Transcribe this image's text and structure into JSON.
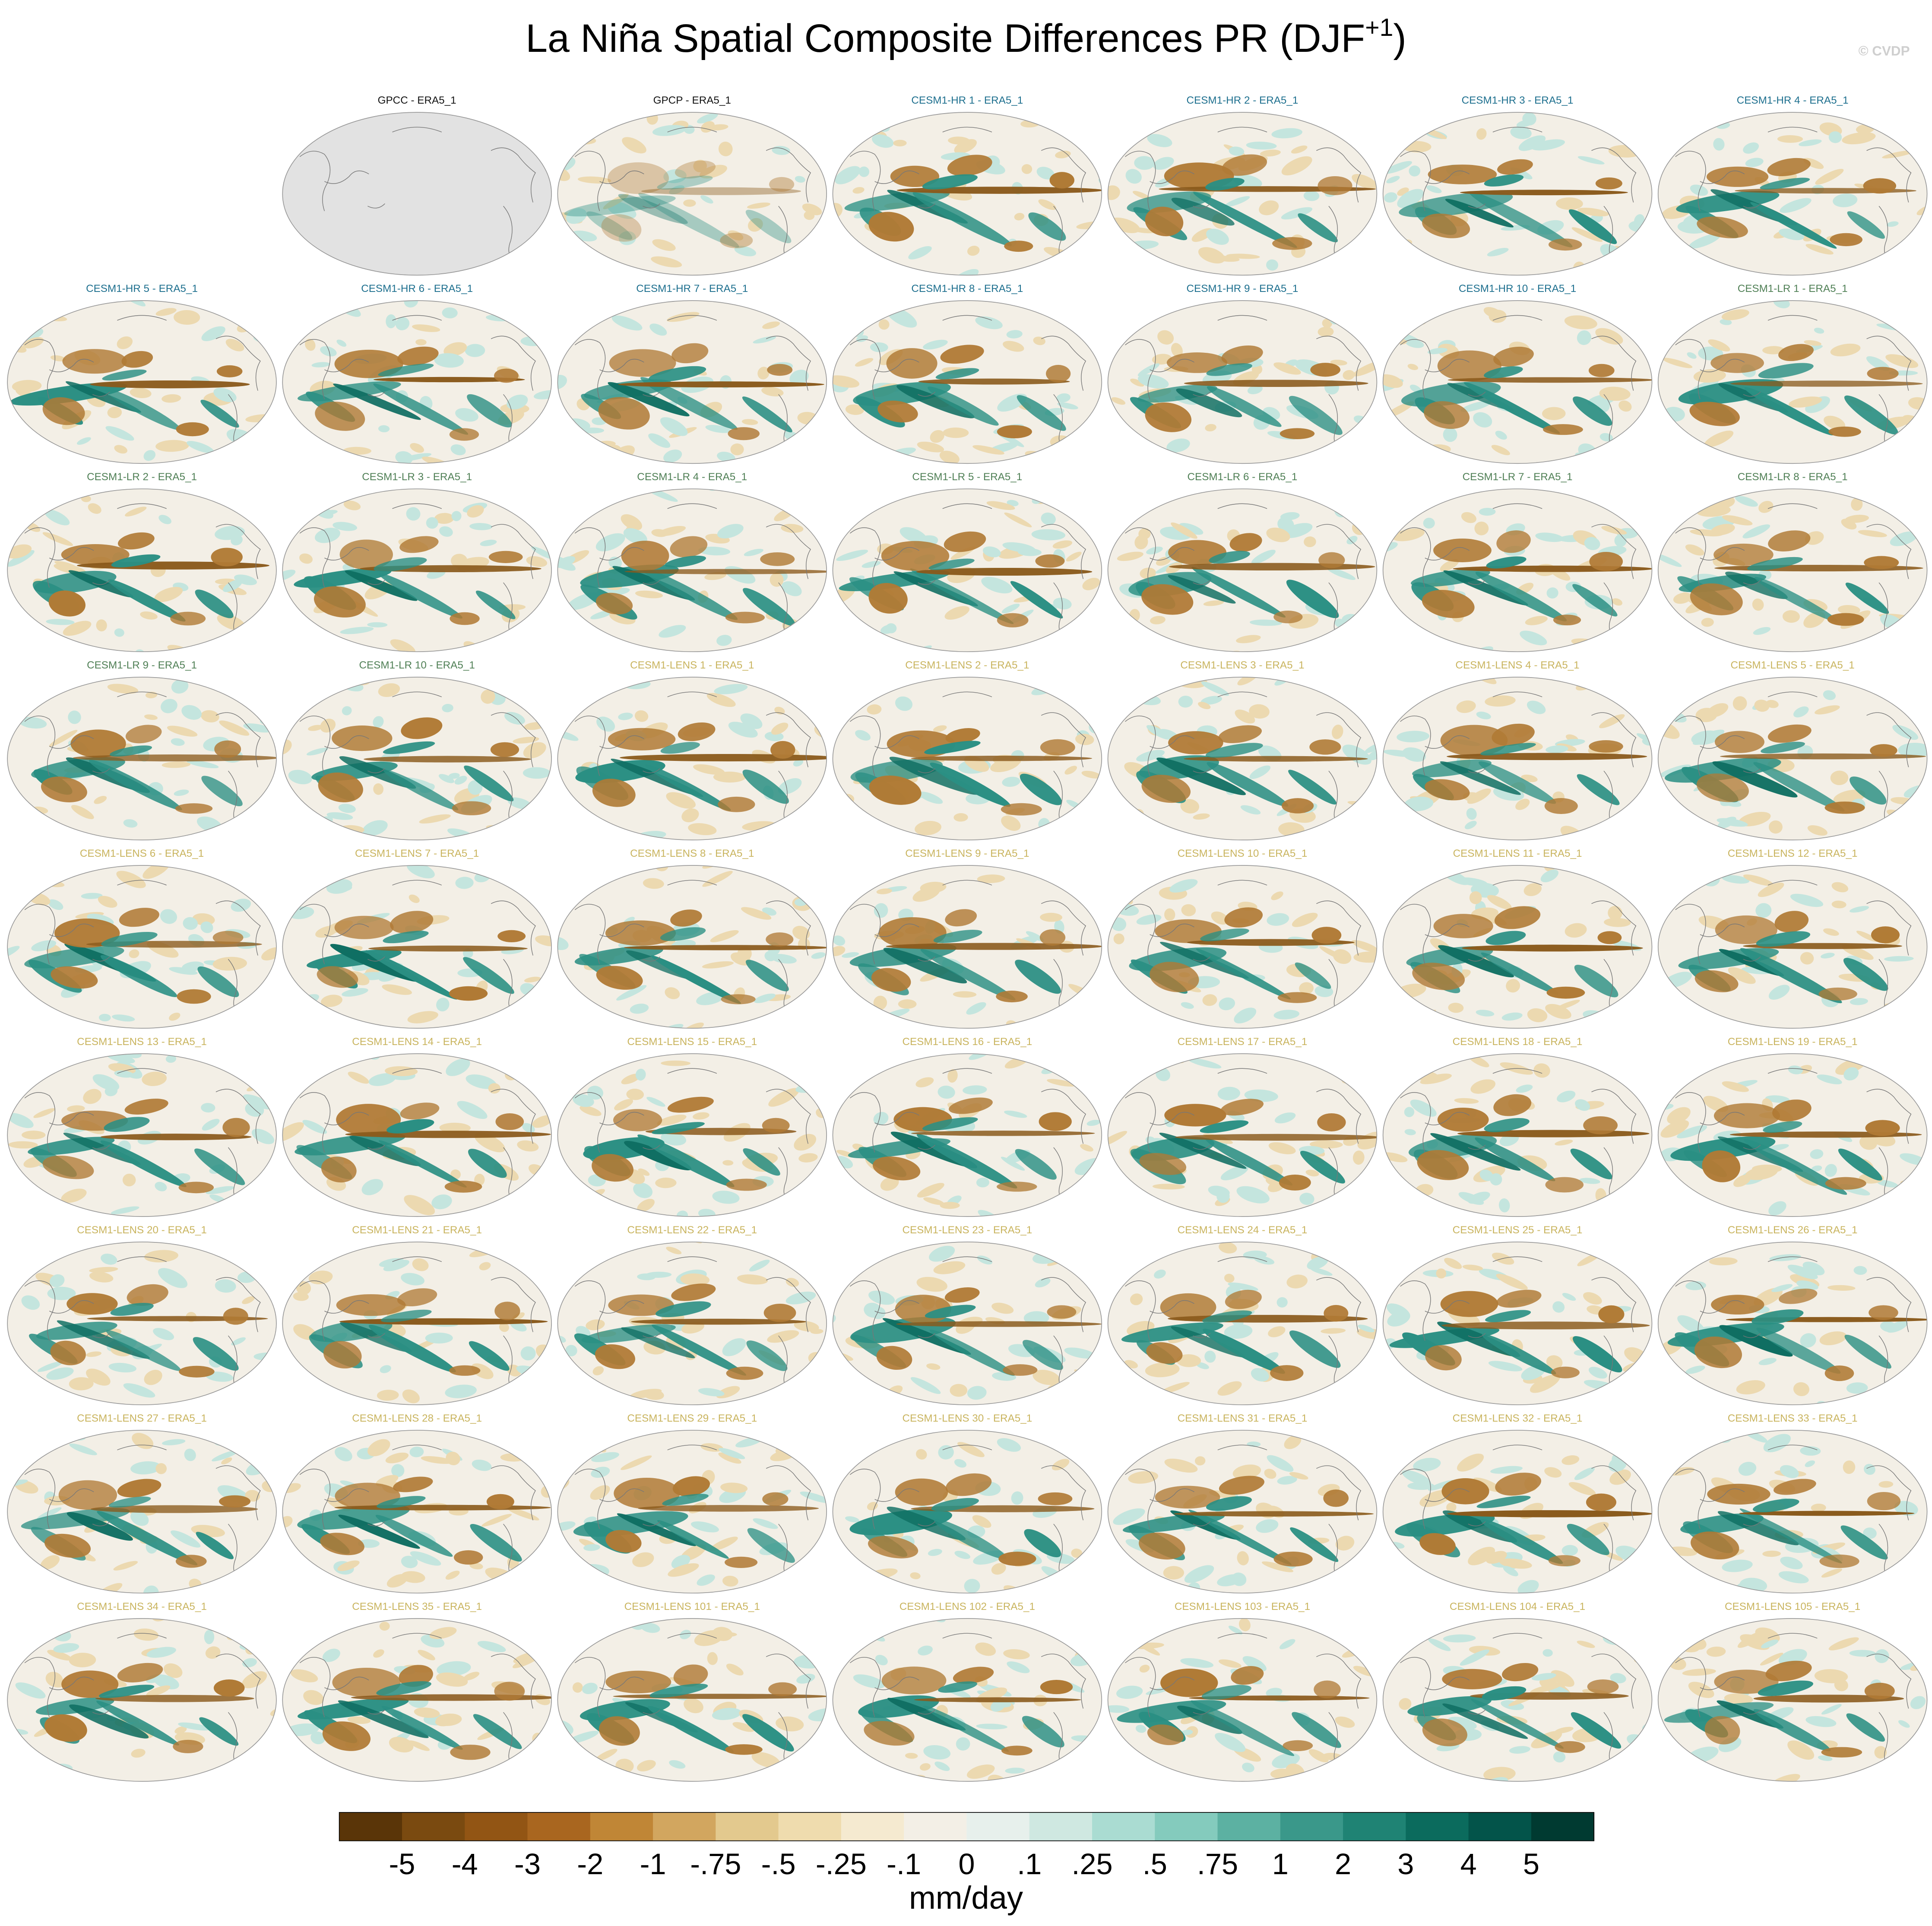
{
  "title": "La Niña Spatial Composite Differences PR (DJF",
  "title_superscript": "+1",
  "title_end": ")",
  "credit": "© CVDP",
  "group_colors": {
    "obs": "#111111",
    "hr": "#1d6f8e",
    "lr": "#4f7f55",
    "lens": "#c9b45e"
  },
  "panels": [
    {
      "label": "GPCC - ERA5_1",
      "group": "obs",
      "background": "#e2e2e2"
    },
    {
      "label": "GPCP - ERA5_1",
      "group": "obs"
    },
    {
      "label": "CESM1-HR 1 - ERA5_1",
      "group": "hr"
    },
    {
      "label": "CESM1-HR 2 - ERA5_1",
      "group": "hr"
    },
    {
      "label": "CESM1-HR 3 - ERA5_1",
      "group": "hr"
    },
    {
      "label": "CESM1-HR 4 - ERA5_1",
      "group": "hr"
    },
    {
      "label": "CESM1-HR 5 - ERA5_1",
      "group": "hr"
    },
    {
      "label": "CESM1-HR 6 - ERA5_1",
      "group": "hr"
    },
    {
      "label": "CESM1-HR 7 - ERA5_1",
      "group": "hr"
    },
    {
      "label": "CESM1-HR 8 - ERA5_1",
      "group": "hr"
    },
    {
      "label": "CESM1-HR 9 - ERA5_1",
      "group": "hr"
    },
    {
      "label": "CESM1-HR 10 - ERA5_1",
      "group": "hr"
    },
    {
      "label": "CESM1-LR 1 - ERA5_1",
      "group": "lr"
    },
    {
      "label": "CESM1-LR 2 - ERA5_1",
      "group": "lr"
    },
    {
      "label": "CESM1-LR 3 - ERA5_1",
      "group": "lr"
    },
    {
      "label": "CESM1-LR 4 - ERA5_1",
      "group": "lr"
    },
    {
      "label": "CESM1-LR 5 - ERA5_1",
      "group": "lr"
    },
    {
      "label": "CESM1-LR 6 - ERA5_1",
      "group": "lr"
    },
    {
      "label": "CESM1-LR 7 - ERA5_1",
      "group": "lr"
    },
    {
      "label": "CESM1-LR 8 - ERA5_1",
      "group": "lr"
    },
    {
      "label": "CESM1-LR 9 - ERA5_1",
      "group": "lr"
    },
    {
      "label": "CESM1-LR 10 - ERA5_1",
      "group": "lr"
    },
    {
      "label": "CESM1-LENS 1 - ERA5_1",
      "group": "lens"
    },
    {
      "label": "CESM1-LENS 2 - ERA5_1",
      "group": "lens"
    },
    {
      "label": "CESM1-LENS 3 - ERA5_1",
      "group": "lens"
    },
    {
      "label": "CESM1-LENS 4 - ERA5_1",
      "group": "lens"
    },
    {
      "label": "CESM1-LENS 5 - ERA5_1",
      "group": "lens"
    },
    {
      "label": "CESM1-LENS 6 - ERA5_1",
      "group": "lens"
    },
    {
      "label": "CESM1-LENS 7 - ERA5_1",
      "group": "lens"
    },
    {
      "label": "CESM1-LENS 8 - ERA5_1",
      "group": "lens"
    },
    {
      "label": "CESM1-LENS 9 - ERA5_1",
      "group": "lens"
    },
    {
      "label": "CESM1-LENS 10 - ERA5_1",
      "group": "lens"
    },
    {
      "label": "CESM1-LENS 11 - ERA5_1",
      "group": "lens"
    },
    {
      "label": "CESM1-LENS 12 - ERA5_1",
      "group": "lens"
    },
    {
      "label": "CESM1-LENS 13 - ERA5_1",
      "group": "lens"
    },
    {
      "label": "CESM1-LENS 14 - ERA5_1",
      "group": "lens"
    },
    {
      "label": "CESM1-LENS 15 - ERA5_1",
      "group": "lens"
    },
    {
      "label": "CESM1-LENS 16 - ERA5_1",
      "group": "lens"
    },
    {
      "label": "CESM1-LENS 17 - ERA5_1",
      "group": "lens"
    },
    {
      "label": "CESM1-LENS 18 - ERA5_1",
      "group": "lens"
    },
    {
      "label": "CESM1-LENS 19 - ERA5_1",
      "group": "lens"
    },
    {
      "label": "CESM1-LENS 20 - ERA5_1",
      "group": "lens"
    },
    {
      "label": "CESM1-LENS 21 - ERA5_1",
      "group": "lens"
    },
    {
      "label": "CESM1-LENS 22 - ERA5_1",
      "group": "lens"
    },
    {
      "label": "CESM1-LENS 23 - ERA5_1",
      "group": "lens"
    },
    {
      "label": "CESM1-LENS 24 - ERA5_1",
      "group": "lens"
    },
    {
      "label": "CESM1-LENS 25 - ERA5_1",
      "group": "lens"
    },
    {
      "label": "CESM1-LENS 26 - ERA5_1",
      "group": "lens"
    },
    {
      "label": "CESM1-LENS 27 - ERA5_1",
      "group": "lens"
    },
    {
      "label": "CESM1-LENS 28 - ERA5_1",
      "group": "lens"
    },
    {
      "label": "CESM1-LENS 29 - ERA5_1",
      "group": "lens"
    },
    {
      "label": "CESM1-LENS 30 - ERA5_1",
      "group": "lens"
    },
    {
      "label": "CESM1-LENS 31 - ERA5_1",
      "group": "lens"
    },
    {
      "label": "CESM1-LENS 32 - ERA5_1",
      "group": "lens"
    },
    {
      "label": "CESM1-LENS 33 - ERA5_1",
      "group": "lens"
    },
    {
      "label": "CESM1-LENS 34 - ERA5_1",
      "group": "lens"
    },
    {
      "label": "CESM1-LENS 35 - ERA5_1",
      "group": "lens"
    },
    {
      "label": "CESM1-LENS 101 - ERA5_1",
      "group": "lens"
    },
    {
      "label": "CESM1-LENS 102 - ERA5_1",
      "group": "lens"
    },
    {
      "label": "CESM1-LENS 103 - ERA5_1",
      "group": "lens"
    },
    {
      "label": "CESM1-LENS 104 - ERA5_1",
      "group": "lens"
    },
    {
      "label": "CESM1-LENS 105 - ERA5_1",
      "group": "lens"
    }
  ],
  "colorbar": {
    "colors": [
      "#5a3508",
      "#7a4a10",
      "#925514",
      "#a9661f",
      "#c08636",
      "#d2a65f",
      "#e3c98e",
      "#efdcae",
      "#f5ead0",
      "#f3efe6",
      "#e7f0ec",
      "#cfe8e1",
      "#aadcd2",
      "#84cbbd",
      "#5cb1a2",
      "#3a988a",
      "#1f8374",
      "#0b6b5d",
      "#03544a",
      "#003a31"
    ],
    "labels": [
      "-5",
      "-4",
      "-3",
      "-2",
      "-1",
      "-.75",
      "-.5",
      "-.25",
      "-.1",
      "0",
      ".1",
      ".25",
      ".5",
      ".75",
      "1",
      "2",
      "3",
      "4",
      "5"
    ],
    "unit": "mm/day"
  }
}
